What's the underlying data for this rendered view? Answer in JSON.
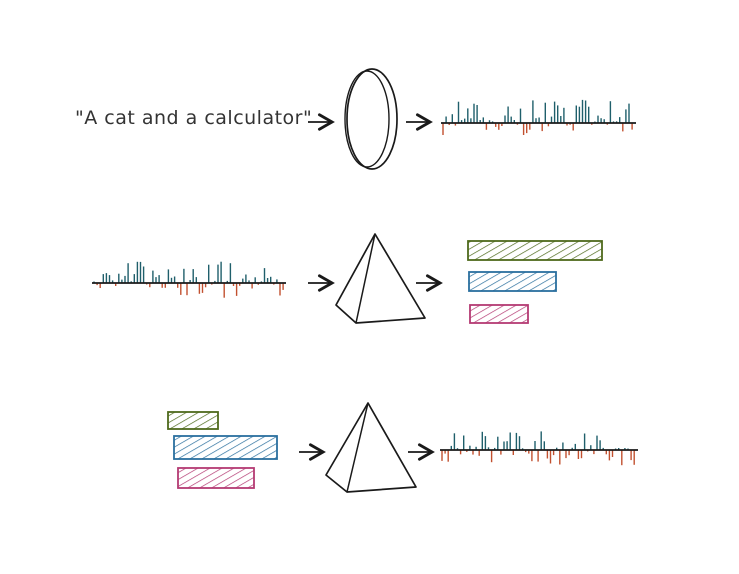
{
  "caption": "\"A cat and a calculator\"",
  "colors": {
    "ink": "#1a1a1a",
    "positive": "#1f5f6b",
    "negative": "#c2502f",
    "bar_green": "#4e6a1c",
    "bar_blue": "#2a6f9e",
    "bar_pink": "#b43a73"
  },
  "icons": [
    "text-encoder-lens-icon",
    "pyramid-icon",
    "pyramid-icon"
  ],
  "rows": {
    "text_to_embedding": {
      "input": "text-prompt",
      "model": "lens-icon",
      "output": "embedding-spikes"
    },
    "embedding_to_bars": {
      "model": "pyramid-icon",
      "bars": [
        {
          "name": "bar-green",
          "color": "#4e6a1c",
          "level": 1.0
        },
        {
          "name": "bar-blue",
          "color": "#2a6f9e",
          "level": 0.65
        },
        {
          "name": "bar-pink",
          "color": "#b43a73",
          "level": 0.43
        }
      ]
    },
    "bars_to_embedding": {
      "model": "pyramid-icon",
      "bars": [
        {
          "name": "bar-green",
          "color": "#4e6a1c",
          "level": 0.47
        },
        {
          "name": "bar-blue",
          "color": "#2a6f9e",
          "level": 1.0
        },
        {
          "name": "bar-pink",
          "color": "#b43a73",
          "level": 0.74
        }
      ]
    }
  }
}
